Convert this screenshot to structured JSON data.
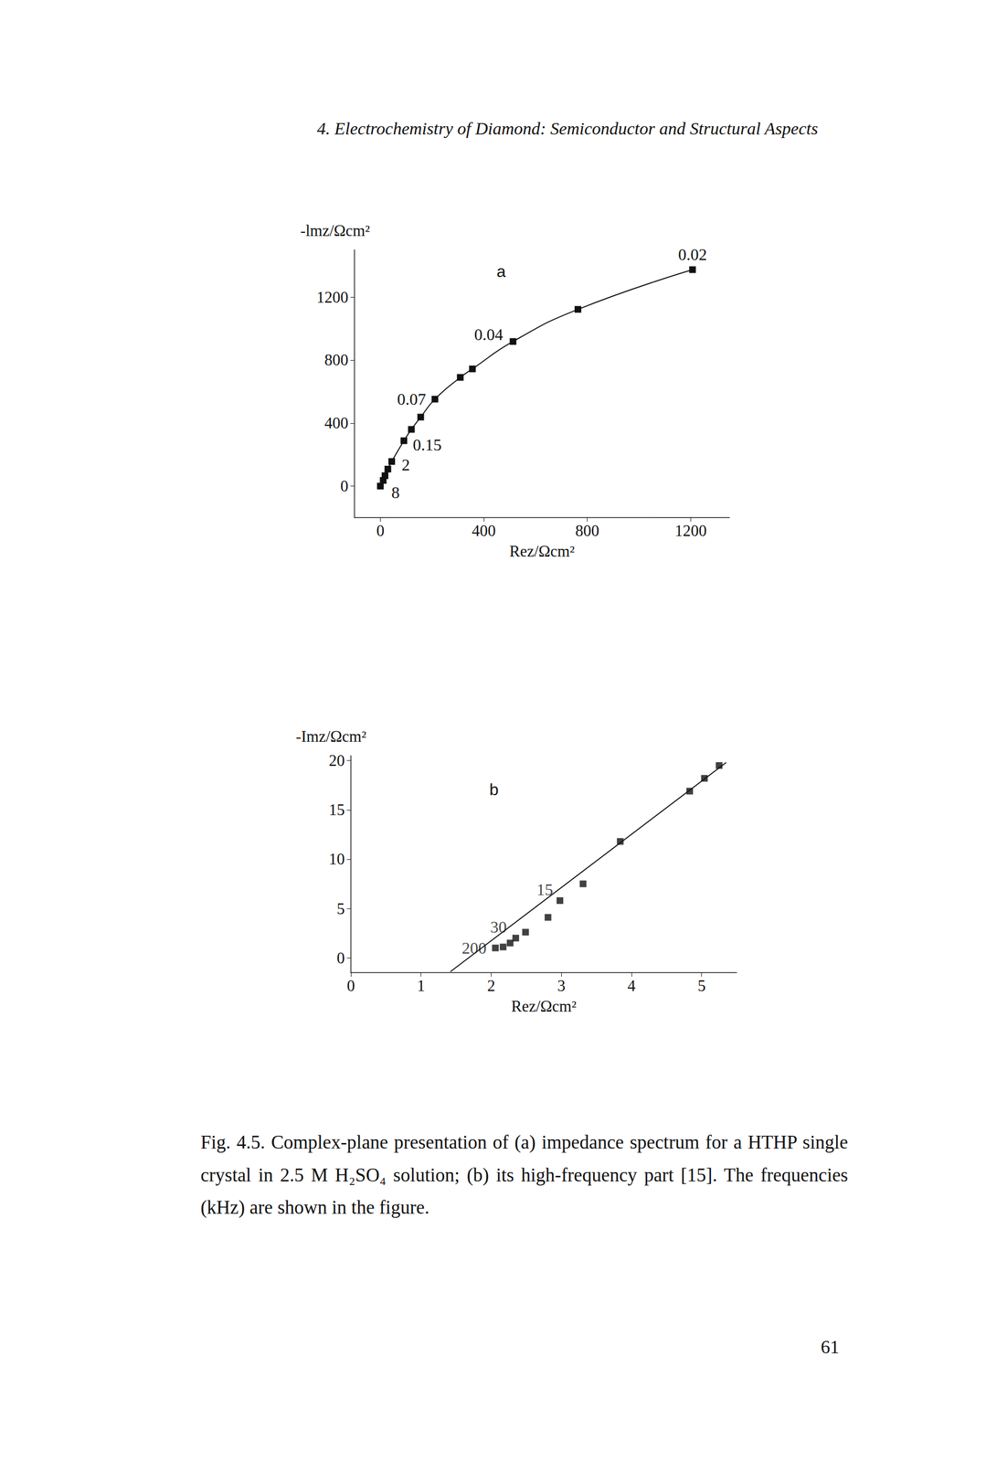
{
  "header": "4. Electrochemistry of Diamond: Semiconductor and Structural Aspects",
  "chart_data": [
    {
      "type": "line",
      "title": "a",
      "x_label": "Rez/Ωcm²",
      "y_label": "-lmz/Ωcm²",
      "xlim": [
        -100,
        1350
      ],
      "xticks": [
        0,
        400,
        800,
        1200
      ],
      "ylim": [
        -200,
        1500
      ],
      "yticks": [
        0,
        400,
        800,
        1200
      ],
      "grid": false,
      "series": [
        {
          "type": "line",
          "marker": "square",
          "line_style": "solid",
          "color": "#111111",
          "x": [
            1207,
            764,
            513,
            356,
            309,
            211,
            156,
            120,
            91,
            44,
            29,
            18,
            11,
            0
          ],
          "values": [
            1374,
            1122,
            918,
            744,
            690,
            552,
            438,
            360,
            288,
            156,
            108,
            66,
            36,
            0
          ],
          "point_labels": [
            "0.02",
            null,
            "0.04",
            null,
            null,
            "0.07",
            null,
            null,
            "0.15",
            "2",
            null,
            null,
            null,
            "8"
          ]
        }
      ]
    },
    {
      "type": "scatter",
      "title": "b",
      "x_label": "Rez/Ωcm²",
      "y_label": "-Imz/Ωcm²",
      "xlim": [
        0,
        5.5
      ],
      "xticks": [
        0,
        1,
        2,
        3,
        4,
        5
      ],
      "ylim": [
        -1.5,
        20.5
      ],
      "yticks": [
        0,
        5,
        10,
        15,
        20
      ],
      "grid": false,
      "series": [
        {
          "type": "scatter",
          "marker": "square",
          "color": "#111111",
          "x": [
            5.25,
            5.04,
            4.83,
            3.84,
            3.31,
            2.98,
            2.81,
            2.49,
            2.35,
            2.27,
            2.17,
            2.06
          ],
          "values": [
            19.5,
            18.2,
            16.9,
            11.8,
            7.5,
            5.8,
            4.1,
            2.6,
            2.0,
            1.5,
            1.1,
            1.0
          ],
          "point_labels": [
            null,
            null,
            null,
            null,
            null,
            "15",
            null,
            null,
            "30",
            null,
            null,
            "200"
          ]
        },
        {
          "type": "line",
          "line_style": "solid",
          "color": "#111111",
          "x": [
            1.42,
            5.35
          ],
          "values": [
            -1.4,
            19.8
          ]
        }
      ]
    }
  ],
  "caption": "Fig. 4.5. Complex-plane presentation of (a) impedance spectrum for a HTHP single crystal in 2.5 M H₂SO₄ solution; (b) its high-frequency part [15]. The frequencies (kHz) are shown in the figure.",
  "page_number": 61
}
